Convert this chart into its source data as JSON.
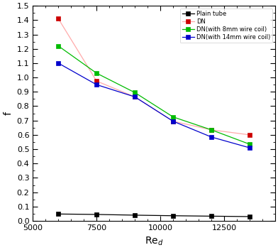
{
  "x": [
    6000,
    7500,
    9000,
    10500,
    12000,
    13500
  ],
  "plain_tube": [
    0.048,
    0.045,
    0.04,
    0.036,
    0.033,
    0.03
  ],
  "DN": [
    1.41,
    0.975,
    0.865,
    0.695,
    0.635,
    0.6
  ],
  "DN_8mm": [
    1.22,
    1.03,
    0.895,
    0.725,
    0.635,
    0.535
  ],
  "DN_14mm": [
    1.1,
    0.95,
    0.865,
    0.695,
    0.585,
    0.51
  ],
  "plain_tube_color": "#000000",
  "DN_line_color": "#ffaaaa",
  "DN_marker_color": "#cc0000",
  "DN_8mm_color": "#00bb00",
  "DN_14mm_color": "#0000cc",
  "label_plain": "Plain tube",
  "label_DN": "DN",
  "label_8mm": "DN(with 8mm wire coil)",
  "label_14mm": "DN(with 14mm wire coil)",
  "xlabel": "Re$_d$",
  "ylabel": "f",
  "xlim": [
    5000,
    14500
  ],
  "ylim": [
    0.0,
    1.5
  ],
  "xticks": [
    5000,
    7500,
    10000,
    12500
  ],
  "yticks": [
    0.0,
    0.1,
    0.2,
    0.3,
    0.4,
    0.5,
    0.6,
    0.7,
    0.8,
    0.9,
    1.0,
    1.1,
    1.2,
    1.3,
    1.4,
    1.5
  ],
  "legend_fontsize": 6.0,
  "tick_labelsize": 8,
  "axis_labelsize": 10
}
